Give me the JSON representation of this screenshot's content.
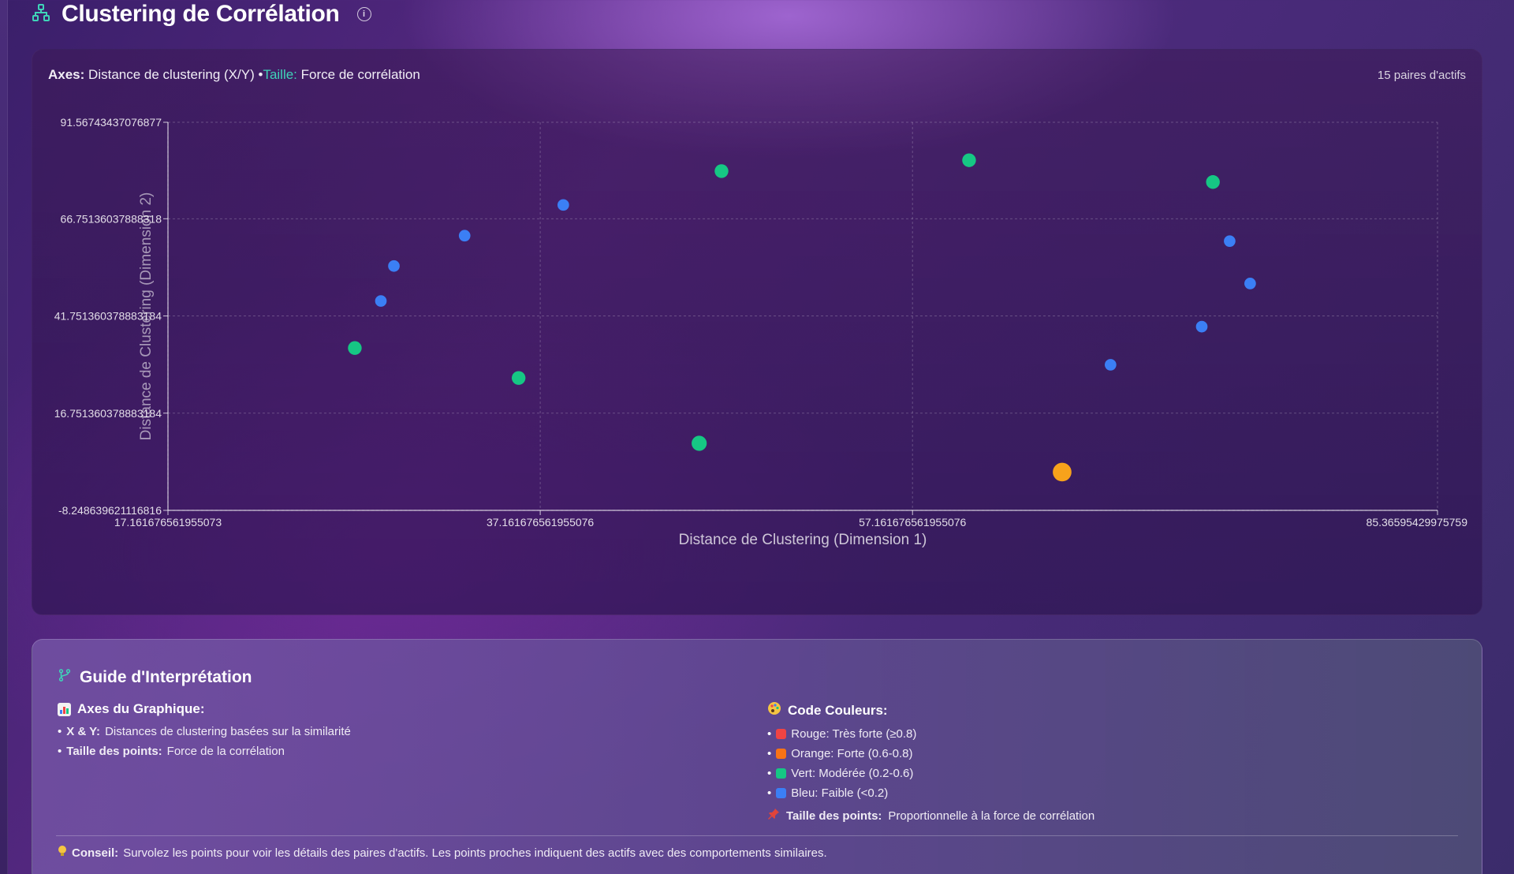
{
  "header": {
    "title": "Clustering de Corrélation",
    "info_icon": "info-icon",
    "title_icon": "hierarchy-icon"
  },
  "chart_card": {
    "axes_label": "Axes:",
    "axes_text": "Distance de clustering (X/Y)",
    "size_label": "Taille:",
    "size_text": "Force de corrélation",
    "pairs_count": "15 paires d'actifs"
  },
  "chart_data": {
    "type": "scatter",
    "xlabel": "Distance de Clustering (Dimension 1)",
    "ylabel": "Distance de Clustering (Dimension 2)",
    "xlim": [
      17.161676561955073,
      85.36595429975759
    ],
    "ylim": [
      -8.248639621116816,
      91.56743437076877
    ],
    "x_ticks": [
      "17.161676561955073",
      "37.161676561955076",
      "57.161676561955076",
      "85.36595429975759"
    ],
    "x_tick_values": [
      17.161676561955073,
      37.161676561955076,
      57.161676561955076,
      85.36595429975759
    ],
    "y_ticks": [
      "91.56743437076877",
      "66.75136037888318",
      "41.751360378883184",
      "16.751360378883184",
      "-8.248639621116816"
    ],
    "y_tick_values": [
      91.56743437076877,
      66.75136037888318,
      41.751360378883184,
      16.751360378883184,
      -8.248639621116816
    ],
    "grid": true,
    "colors": {
      "green": "#16c784",
      "blue": "#3b7ff5",
      "orange": "#f7a21b",
      "red": "#ef4444"
    },
    "points": [
      {
        "x": 27.2,
        "y": 33.5,
        "category": "green",
        "size": 0.3
      },
      {
        "x": 28.6,
        "y": 45.6,
        "category": "blue",
        "size": 0.15
      },
      {
        "x": 29.3,
        "y": 54.6,
        "category": "blue",
        "size": 0.15
      },
      {
        "x": 33.1,
        "y": 62.4,
        "category": "blue",
        "size": 0.15
      },
      {
        "x": 36.0,
        "y": 25.8,
        "category": "green",
        "size": 0.3
      },
      {
        "x": 38.4,
        "y": 70.3,
        "category": "blue",
        "size": 0.15
      },
      {
        "x": 46.9,
        "y": 79.0,
        "category": "green",
        "size": 0.3
      },
      {
        "x": 45.7,
        "y": 9.0,
        "category": "green",
        "size": 0.4
      },
      {
        "x": 60.2,
        "y": 81.8,
        "category": "green",
        "size": 0.3
      },
      {
        "x": 65.2,
        "y": 1.6,
        "category": "orange",
        "size": 0.65
      },
      {
        "x": 67.8,
        "y": 29.2,
        "category": "blue",
        "size": 0.15
      },
      {
        "x": 72.7,
        "y": 39.0,
        "category": "blue",
        "size": 0.15
      },
      {
        "x": 73.3,
        "y": 76.2,
        "category": "green",
        "size": 0.3
      },
      {
        "x": 74.2,
        "y": 61.0,
        "category": "blue",
        "size": 0.15
      },
      {
        "x": 75.3,
        "y": 50.1,
        "category": "blue",
        "size": 0.15
      }
    ]
  },
  "guide": {
    "title": "Guide d'Interprétation",
    "axes_heading": "Axes du Graphique:",
    "axes_items": [
      {
        "label": "X & Y:",
        "text": "Distances de clustering basées sur la similarité"
      },
      {
        "label": "Taille des points:",
        "text": "Force de la corrélation"
      }
    ],
    "colors_heading": "Code Couleurs:",
    "color_items": [
      {
        "text": "Rouge: Très forte (≥0.8)",
        "color": "#ef4444"
      },
      {
        "text": "Orange: Forte (0.6-0.8)",
        "color": "#f97316"
      },
      {
        "text": "Vert: Modérée (0.2-0.6)",
        "color": "#16c784"
      },
      {
        "text": "Bleu: Faible (<0.2)",
        "color": "#3b7ff5"
      }
    ],
    "size_note_label": "Taille des points:",
    "size_note_text": "Proportionnelle à la force de corrélation",
    "tip_label": "Conseil:",
    "tip_text": "Survolez les points pour voir les détails des paires d'actifs. Les points proches indiquent des actifs avec des comportements similaires."
  }
}
